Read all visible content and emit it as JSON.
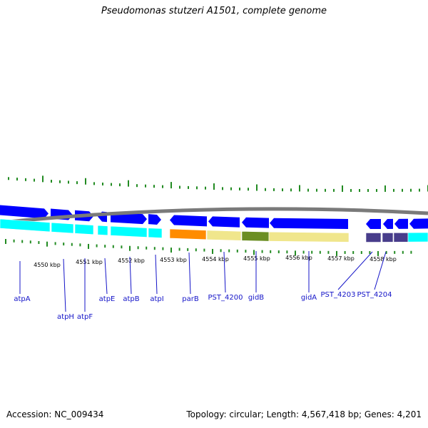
{
  "organism_title": "Pseudomonas stutzeri A1501, complete genome",
  "footer": {
    "accession": "Accession: NC_009434",
    "summary": "Topology: circular; Length: 4,567,418 bp; Genes: 4,201"
  },
  "colors": {
    "backbone": "#7a7a7a",
    "forward_cds": "#0000ff",
    "reverse_cds": "#00ffff",
    "tick": "#228b22",
    "label": "#1414c8",
    "parB": "#ff8c00",
    "pst_4200": "#f0e68c",
    "gidB": "#6b8e23",
    "gidA": "#f0e68c",
    "pst_4203_4204": "#483d8b"
  },
  "kbp_markers": [
    "4550 kbp",
    "4551 kbp",
    "4552 kbp",
    "4553 kbp",
    "4554 kbp",
    "4555 kbp",
    "4556 kbp",
    "4557 kbp",
    "4558 kbp"
  ],
  "genes": [
    {
      "name": "atpA"
    },
    {
      "name": "atpH"
    },
    {
      "name": "atpF"
    },
    {
      "name": "atpE"
    },
    {
      "name": "atpB"
    },
    {
      "name": "atpI"
    },
    {
      "name": "parB"
    },
    {
      "name": "PST_4200"
    },
    {
      "name": "gidB"
    },
    {
      "name": "gidA"
    },
    {
      "name": "PST_4203"
    },
    {
      "name": "PST_4204"
    }
  ]
}
